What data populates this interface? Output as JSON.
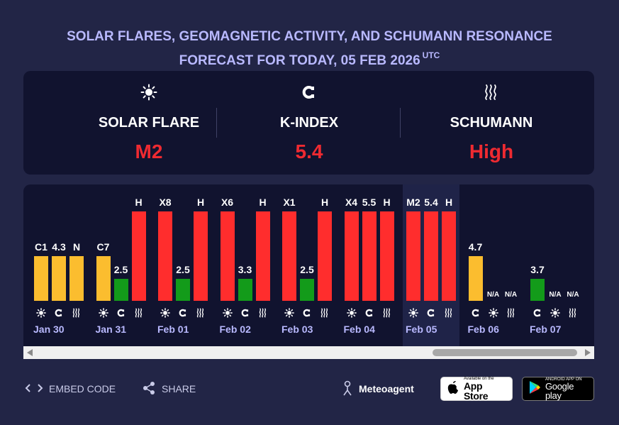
{
  "title": {
    "line1": "SOLAR FLARES, GEOMAGNETIC ACTIVITY, AND SCHUMANN RESONANCE",
    "line2": "FORECAST FOR TODAY, 05 FEB 2026",
    "utc": "UTC"
  },
  "summary": [
    {
      "icon": "sun-icon",
      "label": "SOLAR FLARE",
      "value": "M2"
    },
    {
      "icon": "magnet-icon",
      "label": "K-INDEX",
      "value": "5.4"
    },
    {
      "icon": "waves-icon",
      "label": "SCHUMANN",
      "value": "High"
    }
  ],
  "colors": {
    "background": "#222546",
    "panel": "#11132f",
    "title": "#b9b9ff",
    "high_red": "#ff2d2d",
    "moderate_yellow": "#fbbd2f",
    "low_green": "#139b1a",
    "value_red": "#ef2a31"
  },
  "chart_data": {
    "type": "bar",
    "today": "Feb 05",
    "days": [
      {
        "date": "Jan 30",
        "bars": [
          {
            "metric": "solar",
            "label": "C1",
            "level": 0.5,
            "color": "yellow"
          },
          {
            "metric": "kindex",
            "label": "4.3",
            "level": 0.5,
            "color": "yellow"
          },
          {
            "metric": "schumann",
            "label": "N",
            "level": 0.5,
            "color": "yellow"
          }
        ]
      },
      {
        "date": "Jan 31",
        "bars": [
          {
            "metric": "solar",
            "label": "C7",
            "level": 0.5,
            "color": "yellow"
          },
          {
            "metric": "kindex",
            "label": "2.5",
            "level": 0.25,
            "color": "green"
          },
          {
            "metric": "schumann",
            "label": "H",
            "level": 1.0,
            "color": "red"
          }
        ]
      },
      {
        "date": "Feb 01",
        "bars": [
          {
            "metric": "solar",
            "label": "X8",
            "level": 1.0,
            "color": "red"
          },
          {
            "metric": "kindex",
            "label": "2.5",
            "level": 0.25,
            "color": "green"
          },
          {
            "metric": "schumann",
            "label": "H",
            "level": 1.0,
            "color": "red"
          }
        ]
      },
      {
        "date": "Feb 02",
        "bars": [
          {
            "metric": "solar",
            "label": "X6",
            "level": 1.0,
            "color": "red"
          },
          {
            "metric": "kindex",
            "label": "3.3",
            "level": 0.25,
            "color": "green"
          },
          {
            "metric": "schumann",
            "label": "H",
            "level": 1.0,
            "color": "red"
          }
        ]
      },
      {
        "date": "Feb 03",
        "bars": [
          {
            "metric": "solar",
            "label": "X1",
            "level": 1.0,
            "color": "red"
          },
          {
            "metric": "kindex",
            "label": "2.5",
            "level": 0.25,
            "color": "green"
          },
          {
            "metric": "schumann",
            "label": "H",
            "level": 1.0,
            "color": "red"
          }
        ]
      },
      {
        "date": "Feb 04",
        "bars": [
          {
            "metric": "solar",
            "label": "X4",
            "level": 1.0,
            "color": "red"
          },
          {
            "metric": "kindex",
            "label": "5.5",
            "level": 1.0,
            "color": "red"
          },
          {
            "metric": "schumann",
            "label": "H",
            "level": 1.0,
            "color": "red"
          }
        ]
      },
      {
        "date": "Feb 05",
        "bars": [
          {
            "metric": "solar",
            "label": "M2",
            "level": 1.0,
            "color": "red"
          },
          {
            "metric": "kindex",
            "label": "5.4",
            "level": 1.0,
            "color": "red"
          },
          {
            "metric": "schumann",
            "label": "H",
            "level": 1.0,
            "color": "red"
          }
        ]
      },
      {
        "date": "Feb 06",
        "bars": [
          {
            "metric": "kindex",
            "label": "4.7",
            "level": 0.5,
            "color": "yellow"
          },
          {
            "metric": "solar",
            "label": "N/A",
            "level": 0,
            "color": "none"
          },
          {
            "metric": "schumann",
            "label": "N/A",
            "level": 0,
            "color": "none"
          }
        ]
      },
      {
        "date": "Feb 07",
        "bars": [
          {
            "metric": "kindex",
            "label": "3.7",
            "level": 0.25,
            "color": "green"
          },
          {
            "metric": "solar",
            "label": "N/A",
            "level": 0,
            "color": "none"
          },
          {
            "metric": "schumann",
            "label": "N/A",
            "level": 0,
            "color": "none"
          }
        ]
      }
    ]
  },
  "footer": {
    "embed_label": "EMBED CODE",
    "share_label": "SHARE",
    "brand_label": "Meteoagent",
    "appstore_small": "Available on the",
    "appstore_big": "App Store",
    "gplay_small": "ANDROID APP ON",
    "gplay_big": "Google play"
  }
}
